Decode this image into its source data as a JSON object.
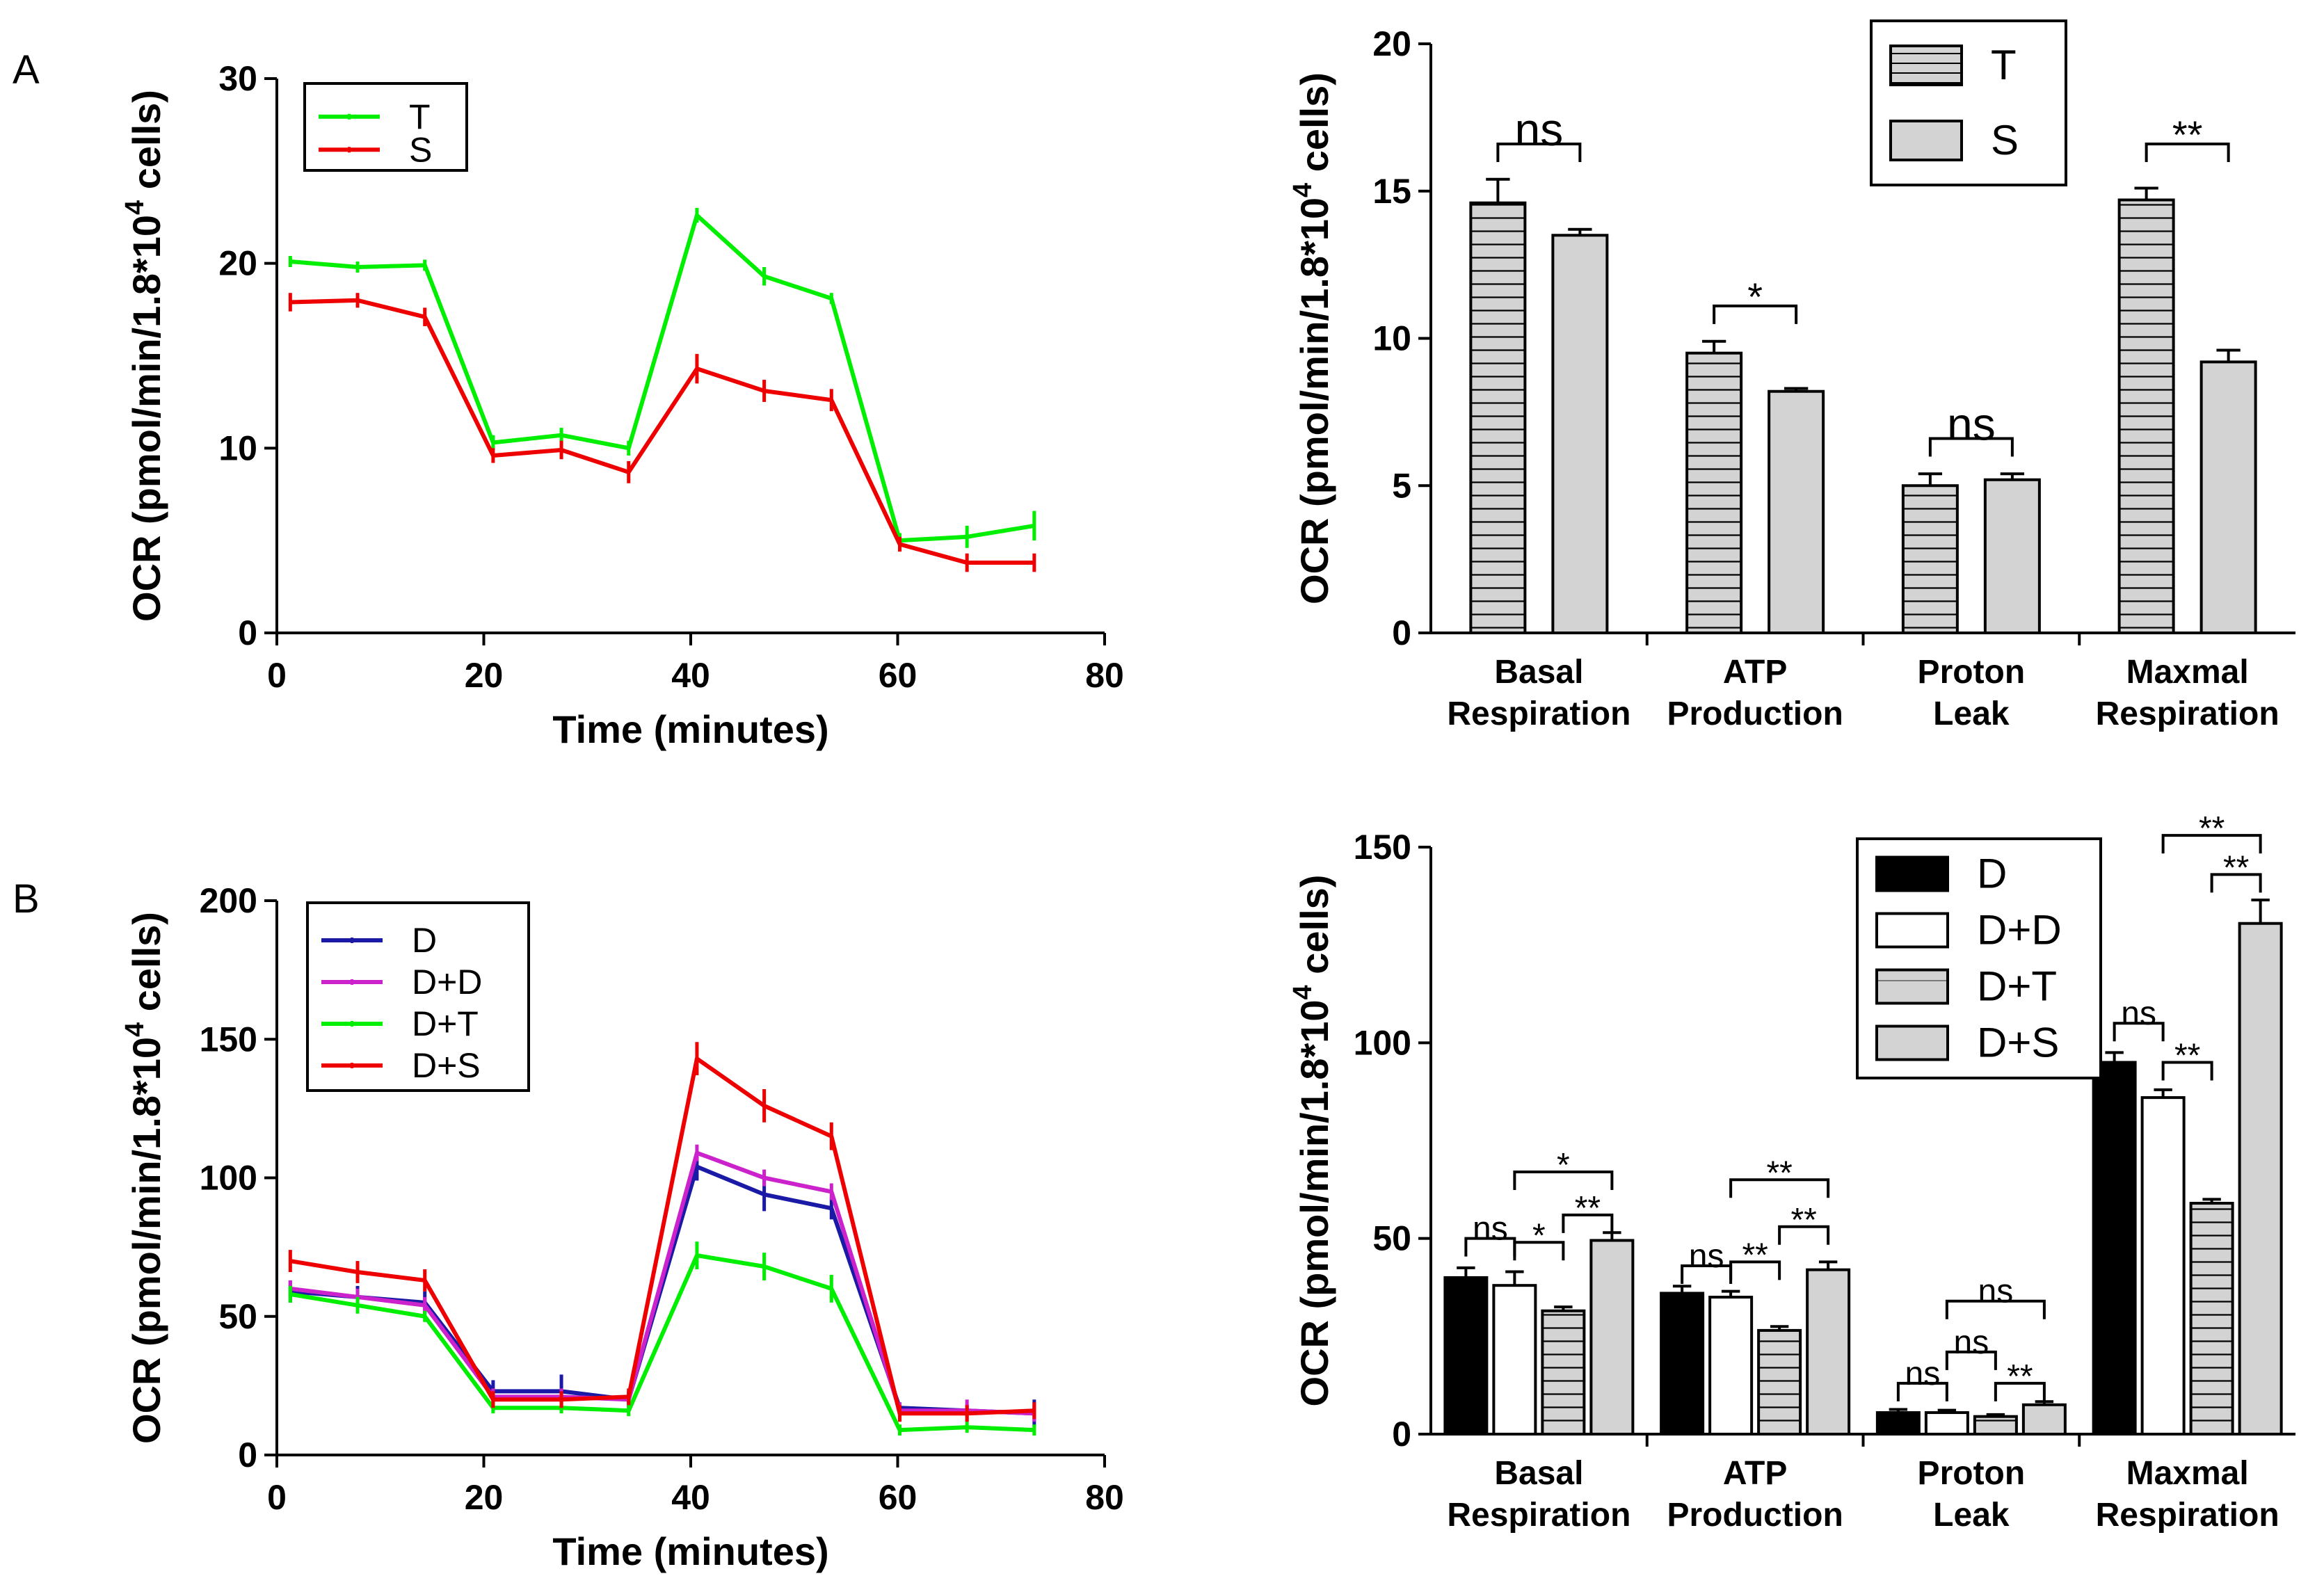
{
  "figure": {
    "panel_a": "A",
    "panel_b": "B"
  },
  "chart_data": [
    {
      "id": "A_line",
      "type": "line",
      "title": "",
      "xlabel": "Time (minutes)",
      "ylabel": "OCR (pmol/min/1.8*10",
      "ylabel_sup": "4",
      "ylabel_tail": " cells)",
      "xlim": [
        0,
        80
      ],
      "ylim": [
        0,
        30
      ],
      "xticks": [
        0,
        20,
        40,
        60,
        80
      ],
      "yticks": [
        0,
        10,
        20,
        30
      ],
      "legend": "top-left",
      "series": [
        {
          "name": "T",
          "color": "#00ee00",
          "x": [
            1.3,
            7.8,
            14.3,
            20.9,
            27.5,
            34,
            40.6,
            47.1,
            53.6,
            60.2,
            66.7,
            73.2
          ],
          "y": [
            20.1,
            19.8,
            19.9,
            10.3,
            10.7,
            10,
            22.6,
            19.3,
            18.1,
            5.0,
            5.2,
            5.8
          ],
          "err": [
            0.3,
            0.3,
            0.3,
            0.4,
            0.4,
            0.4,
            0.4,
            0.5,
            0.3,
            0.4,
            0.6,
            0.8
          ]
        },
        {
          "name": "S",
          "color": "#ee0000",
          "x": [
            1.3,
            7.8,
            14.3,
            20.9,
            27.5,
            34,
            40.6,
            47.1,
            53.6,
            60.2,
            66.7,
            73.2
          ],
          "y": [
            17.9,
            18.0,
            17.1,
            9.6,
            9.9,
            8.7,
            14.3,
            13.1,
            12.6,
            4.8,
            3.8,
            3.8
          ],
          "err": [
            0.5,
            0.4,
            0.5,
            0.4,
            0.5,
            0.6,
            0.8,
            0.6,
            0.6,
            0.4,
            0.5,
            0.5
          ]
        }
      ]
    },
    {
      "id": "A_bar",
      "type": "bar",
      "title": "",
      "xlabel": "",
      "ylabel": "OCR (pmol/min/1.8*10",
      "ylabel_sup": "4",
      "ylabel_tail": " cells)",
      "ylim": [
        0,
        20
      ],
      "yticks": [
        0,
        5,
        10,
        15,
        20
      ],
      "legend": "top-right",
      "categories": [
        [
          "Basal",
          "Respiration"
        ],
        [
          "ATP",
          "Production"
        ],
        [
          "Proton",
          "Leak"
        ],
        [
          "Maxmal",
          "Respiration"
        ]
      ],
      "series": [
        {
          "name": "T",
          "pattern": "hstripe",
          "values": [
            14.6,
            9.5,
            5.0,
            14.7
          ],
          "err": [
            0.8,
            0.4,
            0.4,
            0.4
          ]
        },
        {
          "name": "S",
          "pattern": "gray",
          "values": [
            13.5,
            8.2,
            5.2,
            9.2
          ],
          "err": [
            0.2,
            0.1,
            0.2,
            0.4
          ]
        }
      ],
      "annotations": [
        {
          "cat": 0,
          "from": 0,
          "to": 1,
          "text": "ns",
          "level": 16.6,
          "size": "big"
        },
        {
          "cat": 1,
          "from": 0,
          "to": 1,
          "text": "*",
          "level": 11.1,
          "size": "normal"
        },
        {
          "cat": 2,
          "from": 0,
          "to": 1,
          "text": "ns",
          "level": 6.6,
          "size": "big"
        },
        {
          "cat": 3,
          "from": 0,
          "to": 1,
          "text": "**",
          "level": 16.6,
          "size": "normal"
        }
      ]
    },
    {
      "id": "B_line",
      "type": "line",
      "title": "",
      "xlabel": "Time (minutes)",
      "ylabel": "OCR (pmol/min/1.8*10",
      "ylabel_sup": "4",
      "ylabel_tail": " cells)",
      "xlim": [
        0,
        80
      ],
      "ylim": [
        0,
        200
      ],
      "xticks": [
        0,
        20,
        40,
        60,
        80
      ],
      "yticks": [
        0,
        50,
        100,
        150,
        200
      ],
      "legend": "top-left",
      "series": [
        {
          "name": "D",
          "color": "#1a1aa6",
          "x": [
            1.3,
            7.8,
            14.3,
            20.9,
            27.5,
            34,
            40.6,
            47.1,
            53.6,
            60.2,
            66.7,
            73.2
          ],
          "y": [
            59,
            57,
            55,
            23,
            23,
            20,
            104,
            94,
            89,
            17,
            16,
            15
          ],
          "err": [
            4,
            4,
            4,
            4,
            6,
            3,
            5,
            6,
            4,
            2,
            2,
            5
          ]
        },
        {
          "name": "D+D",
          "color": "#cc22cc",
          "x": [
            1.3,
            7.8,
            14.3,
            20.9,
            27.5,
            34,
            40.6,
            47.1,
            53.6,
            60.2,
            66.7,
            73.2
          ],
          "y": [
            60,
            57,
            54,
            21,
            21,
            20,
            109,
            100,
            95,
            16,
            16,
            15
          ],
          "err": [
            3,
            3,
            3,
            3,
            3,
            3,
            3,
            3,
            3,
            3,
            4,
            3
          ]
        },
        {
          "name": "D+T",
          "color": "#00ee00",
          "x": [
            1.3,
            7.8,
            14.3,
            20.9,
            27.5,
            34,
            40.6,
            47.1,
            53.6,
            60.2,
            66.7,
            73.2
          ],
          "y": [
            58,
            54,
            50,
            17,
            17,
            16,
            72,
            68,
            60,
            9,
            10,
            9
          ],
          "err": [
            3,
            3,
            2,
            2,
            2,
            2,
            5,
            5,
            5,
            2,
            2,
            2
          ]
        },
        {
          "name": "D+S",
          "color": "#ee0000",
          "x": [
            1.3,
            7.8,
            14.3,
            20.9,
            27.5,
            34,
            40.6,
            47.1,
            53.6,
            60.2,
            66.7,
            73.2
          ],
          "y": [
            70,
            66,
            63,
            20,
            20,
            21,
            143,
            126,
            115,
            15,
            15,
            16
          ],
          "err": [
            4,
            4,
            4,
            3,
            3,
            3,
            6,
            6,
            5,
            3,
            3,
            3
          ]
        }
      ]
    },
    {
      "id": "B_bar",
      "type": "bar",
      "title": "",
      "xlabel": "",
      "ylabel": "OCR (pmol/min/1.8*10",
      "ylabel_sup": "4",
      "ylabel_tail": " cells)",
      "ylim": [
        0,
        150
      ],
      "yticks": [
        0,
        50,
        100,
        150
      ],
      "legend": "top-right",
      "categories": [
        [
          "Basal",
          "Respiration"
        ],
        [
          "ATP",
          "Production"
        ],
        [
          "Proton",
          "Leak"
        ],
        [
          "Maxmal",
          "Respiration"
        ]
      ],
      "series": [
        {
          "name": "D",
          "pattern": "black",
          "values": [
            40,
            36,
            5.5,
            95
          ],
          "err": [
            2.5,
            1.8,
            0.8,
            2.5
          ]
        },
        {
          "name": "D+D",
          "pattern": "white",
          "values": [
            38,
            35,
            5.5,
            86
          ],
          "err": [
            3.5,
            1.5,
            0.6,
            2.0
          ]
        },
        {
          "name": "D+T",
          "pattern": "hstripe",
          "values": [
            31.5,
            26.5,
            4.5,
            59
          ],
          "err": [
            1.0,
            1.0,
            0.5,
            1.0
          ]
        },
        {
          "name": "D+S",
          "pattern": "gray",
          "values": [
            49.5,
            42,
            7.5,
            130.5
          ],
          "err": [
            2.0,
            2.0,
            0.8,
            6.0
          ]
        }
      ],
      "annotations": [
        {
          "cat": 0,
          "from": 0,
          "to": 1,
          "text": "ns",
          "level": 50
        },
        {
          "cat": 0,
          "from": 1,
          "to": 2,
          "text": "*",
          "level": 49
        },
        {
          "cat": 0,
          "from": 2,
          "to": 3,
          "text": "**",
          "level": 56
        },
        {
          "cat": 0,
          "from": 1,
          "to": 3,
          "text": "*",
          "level": 67
        },
        {
          "cat": 1,
          "from": 0,
          "to": 1,
          "text": "ns",
          "level": 43
        },
        {
          "cat": 1,
          "from": 1,
          "to": 2,
          "text": "**",
          "level": 44
        },
        {
          "cat": 1,
          "from": 2,
          "to": 3,
          "text": "**",
          "level": 53
        },
        {
          "cat": 1,
          "from": 1,
          "to": 3,
          "text": "**",
          "level": 65
        },
        {
          "cat": 2,
          "from": 0,
          "to": 1,
          "text": "ns",
          "level": 13
        },
        {
          "cat": 2,
          "from": 1,
          "to": 2,
          "text": "ns",
          "level": 21
        },
        {
          "cat": 2,
          "from": 2,
          "to": 3,
          "text": "**",
          "level": 13
        },
        {
          "cat": 2,
          "from": 1,
          "to": 3,
          "text": "ns",
          "level": 34
        },
        {
          "cat": 3,
          "from": 0,
          "to": 1,
          "text": "ns",
          "level": 105
        },
        {
          "cat": 3,
          "from": 1,
          "to": 2,
          "text": "**",
          "level": 95
        },
        {
          "cat": 3,
          "from": 2,
          "to": 3,
          "text": "**",
          "level": 143
        },
        {
          "cat": 3,
          "from": 1,
          "to": 3,
          "text": "**",
          "level": 153
        }
      ]
    }
  ]
}
